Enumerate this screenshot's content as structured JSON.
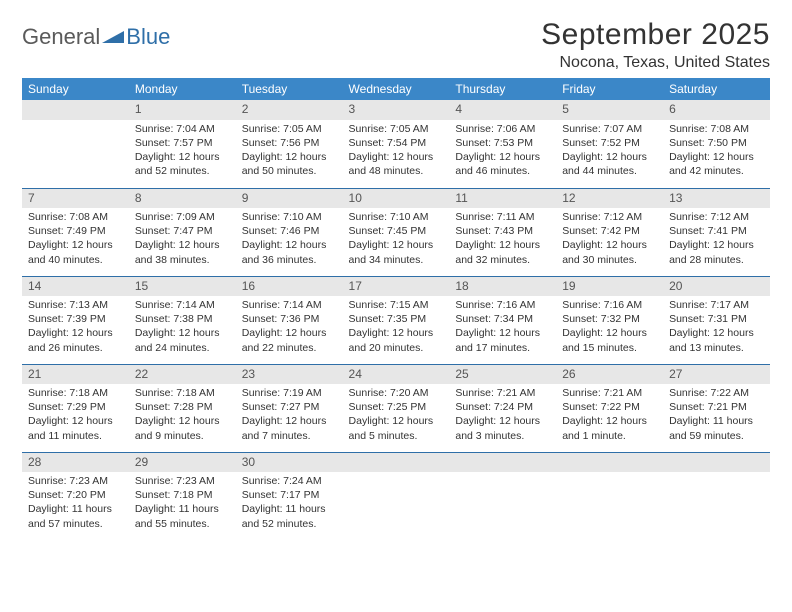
{
  "logo": {
    "word1": "General",
    "word2": "Blue"
  },
  "title": "September 2025",
  "location": "Nocona, Texas, United States",
  "colors": {
    "header_bg": "#3b87c8",
    "header_text": "#ffffff",
    "daynum_bg": "#e7e7e7",
    "rule": "#2f6fa8",
    "logo_gray": "#5a5a5a",
    "logo_blue": "#2f6fa8"
  },
  "weekdays": [
    "Sunday",
    "Monday",
    "Tuesday",
    "Wednesday",
    "Thursday",
    "Friday",
    "Saturday"
  ],
  "weeks": [
    [
      {
        "empty": true
      },
      {
        "n": "1",
        "sr": "Sunrise: 7:04 AM",
        "ss": "Sunset: 7:57 PM",
        "dl": "Daylight: 12 hours and 52 minutes."
      },
      {
        "n": "2",
        "sr": "Sunrise: 7:05 AM",
        "ss": "Sunset: 7:56 PM",
        "dl": "Daylight: 12 hours and 50 minutes."
      },
      {
        "n": "3",
        "sr": "Sunrise: 7:05 AM",
        "ss": "Sunset: 7:54 PM",
        "dl": "Daylight: 12 hours and 48 minutes."
      },
      {
        "n": "4",
        "sr": "Sunrise: 7:06 AM",
        "ss": "Sunset: 7:53 PM",
        "dl": "Daylight: 12 hours and 46 minutes."
      },
      {
        "n": "5",
        "sr": "Sunrise: 7:07 AM",
        "ss": "Sunset: 7:52 PM",
        "dl": "Daylight: 12 hours and 44 minutes."
      },
      {
        "n": "6",
        "sr": "Sunrise: 7:08 AM",
        "ss": "Sunset: 7:50 PM",
        "dl": "Daylight: 12 hours and 42 minutes."
      }
    ],
    [
      {
        "n": "7",
        "sr": "Sunrise: 7:08 AM",
        "ss": "Sunset: 7:49 PM",
        "dl": "Daylight: 12 hours and 40 minutes."
      },
      {
        "n": "8",
        "sr": "Sunrise: 7:09 AM",
        "ss": "Sunset: 7:47 PM",
        "dl": "Daylight: 12 hours and 38 minutes."
      },
      {
        "n": "9",
        "sr": "Sunrise: 7:10 AM",
        "ss": "Sunset: 7:46 PM",
        "dl": "Daylight: 12 hours and 36 minutes."
      },
      {
        "n": "10",
        "sr": "Sunrise: 7:10 AM",
        "ss": "Sunset: 7:45 PM",
        "dl": "Daylight: 12 hours and 34 minutes."
      },
      {
        "n": "11",
        "sr": "Sunrise: 7:11 AM",
        "ss": "Sunset: 7:43 PM",
        "dl": "Daylight: 12 hours and 32 minutes."
      },
      {
        "n": "12",
        "sr": "Sunrise: 7:12 AM",
        "ss": "Sunset: 7:42 PM",
        "dl": "Daylight: 12 hours and 30 minutes."
      },
      {
        "n": "13",
        "sr": "Sunrise: 7:12 AM",
        "ss": "Sunset: 7:41 PM",
        "dl": "Daylight: 12 hours and 28 minutes."
      }
    ],
    [
      {
        "n": "14",
        "sr": "Sunrise: 7:13 AM",
        "ss": "Sunset: 7:39 PM",
        "dl": "Daylight: 12 hours and 26 minutes."
      },
      {
        "n": "15",
        "sr": "Sunrise: 7:14 AM",
        "ss": "Sunset: 7:38 PM",
        "dl": "Daylight: 12 hours and 24 minutes."
      },
      {
        "n": "16",
        "sr": "Sunrise: 7:14 AM",
        "ss": "Sunset: 7:36 PM",
        "dl": "Daylight: 12 hours and 22 minutes."
      },
      {
        "n": "17",
        "sr": "Sunrise: 7:15 AM",
        "ss": "Sunset: 7:35 PM",
        "dl": "Daylight: 12 hours and 20 minutes."
      },
      {
        "n": "18",
        "sr": "Sunrise: 7:16 AM",
        "ss": "Sunset: 7:34 PM",
        "dl": "Daylight: 12 hours and 17 minutes."
      },
      {
        "n": "19",
        "sr": "Sunrise: 7:16 AM",
        "ss": "Sunset: 7:32 PM",
        "dl": "Daylight: 12 hours and 15 minutes."
      },
      {
        "n": "20",
        "sr": "Sunrise: 7:17 AM",
        "ss": "Sunset: 7:31 PM",
        "dl": "Daylight: 12 hours and 13 minutes."
      }
    ],
    [
      {
        "n": "21",
        "sr": "Sunrise: 7:18 AM",
        "ss": "Sunset: 7:29 PM",
        "dl": "Daylight: 12 hours and 11 minutes."
      },
      {
        "n": "22",
        "sr": "Sunrise: 7:18 AM",
        "ss": "Sunset: 7:28 PM",
        "dl": "Daylight: 12 hours and 9 minutes."
      },
      {
        "n": "23",
        "sr": "Sunrise: 7:19 AM",
        "ss": "Sunset: 7:27 PM",
        "dl": "Daylight: 12 hours and 7 minutes."
      },
      {
        "n": "24",
        "sr": "Sunrise: 7:20 AM",
        "ss": "Sunset: 7:25 PM",
        "dl": "Daylight: 12 hours and 5 minutes."
      },
      {
        "n": "25",
        "sr": "Sunrise: 7:21 AM",
        "ss": "Sunset: 7:24 PM",
        "dl": "Daylight: 12 hours and 3 minutes."
      },
      {
        "n": "26",
        "sr": "Sunrise: 7:21 AM",
        "ss": "Sunset: 7:22 PM",
        "dl": "Daylight: 12 hours and 1 minute."
      },
      {
        "n": "27",
        "sr": "Sunrise: 7:22 AM",
        "ss": "Sunset: 7:21 PM",
        "dl": "Daylight: 11 hours and 59 minutes."
      }
    ],
    [
      {
        "n": "28",
        "sr": "Sunrise: 7:23 AM",
        "ss": "Sunset: 7:20 PM",
        "dl": "Daylight: 11 hours and 57 minutes."
      },
      {
        "n": "29",
        "sr": "Sunrise: 7:23 AM",
        "ss": "Sunset: 7:18 PM",
        "dl": "Daylight: 11 hours and 55 minutes."
      },
      {
        "n": "30",
        "sr": "Sunrise: 7:24 AM",
        "ss": "Sunset: 7:17 PM",
        "dl": "Daylight: 11 hours and 52 minutes."
      },
      {
        "empty": true
      },
      {
        "empty": true
      },
      {
        "empty": true
      },
      {
        "empty": true
      }
    ]
  ]
}
